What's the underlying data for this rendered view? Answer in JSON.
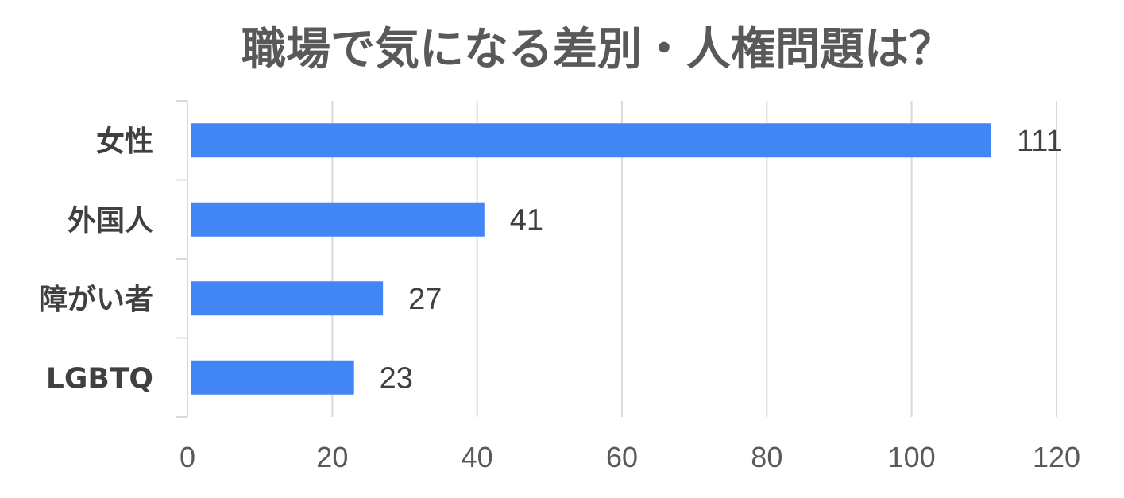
{
  "chart_data": {
    "type": "bar",
    "orientation": "horizontal",
    "title": "職場で気になる差別・人権問題は？",
    "categories": [
      "女性",
      "外国人",
      "障がい者",
      "LGBTQ"
    ],
    "values": [
      111,
      41,
      27,
      23
    ],
    "xlim": [
      0,
      120
    ],
    "x_ticks": [
      0,
      20,
      40,
      60,
      80,
      100,
      120
    ],
    "grid": "vertical",
    "legend": "none",
    "bar_color": "#4285f4",
    "grid_color": "#d9d9d9",
    "text_color": "#595959"
  }
}
